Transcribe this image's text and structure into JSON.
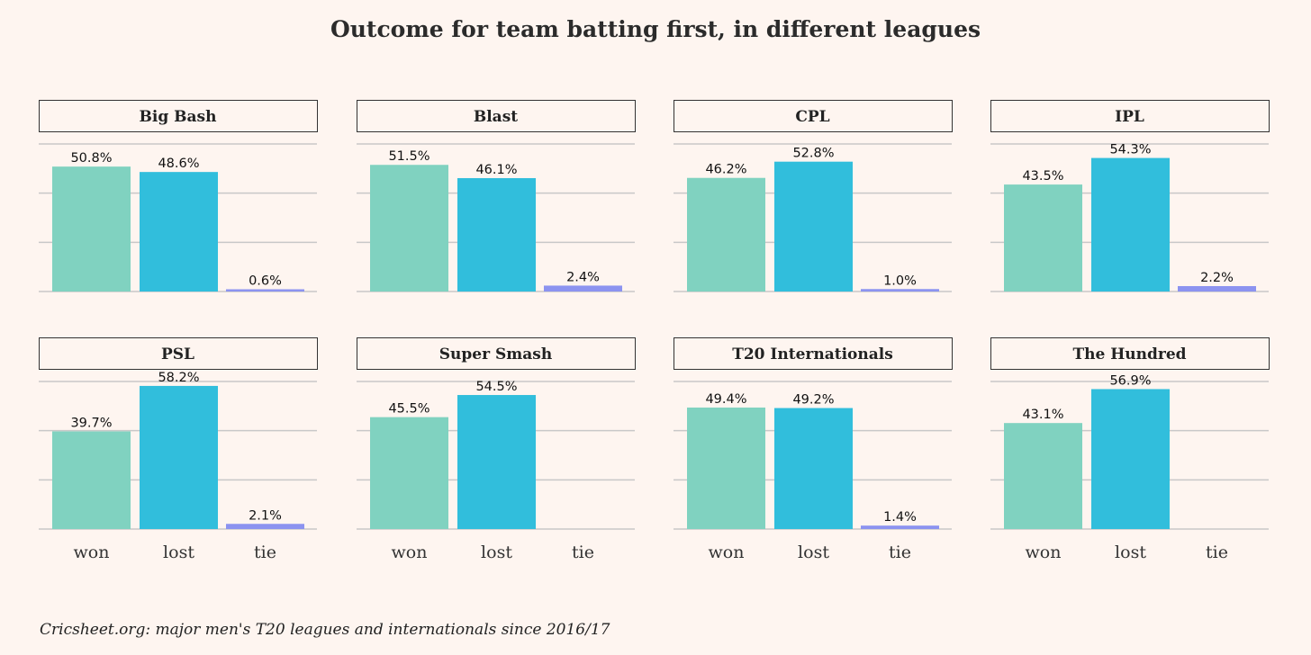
{
  "chart_data": {
    "type": "bar",
    "title": "Outcome for team batting first, in different leagues",
    "caption": "Cricsheet.org: major men's T20 leagues and internationals since 2016/17",
    "categories": [
      "won",
      "lost",
      "tie"
    ],
    "ylim": [
      0,
      60
    ],
    "y_gridlines": [
      0,
      20,
      40,
      60
    ],
    "grid": true,
    "colors": {
      "won": "#80d2c0",
      "lost": "#31bedc",
      "tie": "#8c93f0",
      "background": "#fef5f0",
      "grid": "#c8c8c8"
    },
    "value_suffix": "%",
    "panels": [
      {
        "name": "Big Bash",
        "values": [
          50.8,
          48.6,
          0.6
        ],
        "labels": [
          "50.8%",
          "48.6%",
          "0.6%"
        ]
      },
      {
        "name": "Blast",
        "values": [
          51.5,
          46.1,
          2.4
        ],
        "labels": [
          "51.5%",
          "46.1%",
          "2.4%"
        ]
      },
      {
        "name": "CPL",
        "values": [
          46.2,
          52.8,
          1.0
        ],
        "labels": [
          "46.2%",
          "52.8%",
          "1.0%"
        ]
      },
      {
        "name": "IPL",
        "values": [
          43.5,
          54.3,
          2.2
        ],
        "labels": [
          "43.5%",
          "54.3%",
          "2.2%"
        ]
      },
      {
        "name": "PSL",
        "values": [
          39.7,
          58.2,
          2.1
        ],
        "labels": [
          "39.7%",
          "58.2%",
          "2.1%"
        ]
      },
      {
        "name": "Super Smash",
        "values": [
          45.5,
          54.5,
          0
        ],
        "labels": [
          "45.5%",
          "54.5%",
          null
        ]
      },
      {
        "name": "T20 Internationals",
        "values": [
          49.4,
          49.2,
          1.4
        ],
        "labels": [
          "49.4%",
          "49.2%",
          "1.4%"
        ]
      },
      {
        "name": "The Hundred",
        "values": [
          43.1,
          56.9,
          0
        ],
        "labels": [
          "43.1%",
          "56.9%",
          null
        ]
      }
    ]
  }
}
